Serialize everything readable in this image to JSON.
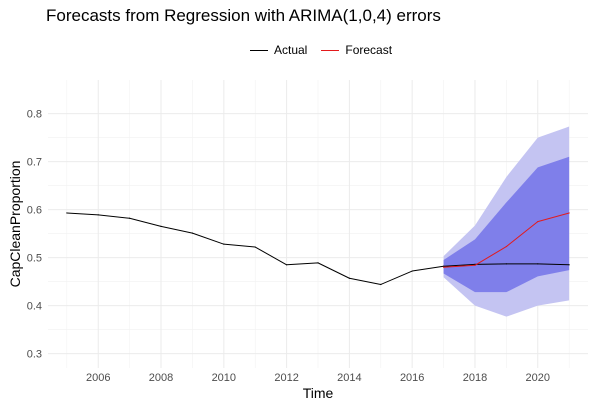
{
  "chart_data": {
    "type": "line",
    "title": "Forecasts from Regression with ARIMA(1,0,4) errors",
    "xlabel": "Time",
    "ylabel": "CapCleanProportion",
    "xlim": [
      2004.4,
      2021.6
    ],
    "ylim": [
      0.27,
      0.87
    ],
    "x_ticks": [
      2006,
      2008,
      2010,
      2012,
      2014,
      2016,
      2018,
      2020
    ],
    "y_ticks": [
      0.3,
      0.4,
      0.5,
      0.6,
      0.7,
      0.8
    ],
    "legend": {
      "position": "top",
      "items": [
        {
          "label": "Actual",
          "color": "#000000"
        },
        {
          "label": "Forecast",
          "color": "#e31a1c"
        }
      ]
    },
    "series": [
      {
        "name": "Actual",
        "color": "#000000",
        "x": [
          2005,
          2006,
          2007,
          2008,
          2009,
          2010,
          2011,
          2012,
          2013,
          2014,
          2015,
          2016,
          2017,
          2018,
          2019,
          2020,
          2021
        ],
        "y": [
          0.593,
          0.589,
          0.582,
          0.565,
          0.551,
          0.528,
          0.522,
          0.485,
          0.489,
          0.457,
          0.444,
          0.472,
          0.482,
          0.486,
          0.487,
          0.487,
          0.485
        ]
      },
      {
        "name": "Forecast",
        "color": "#e31a1c",
        "x": [
          2017,
          2018,
          2019,
          2020,
          2021
        ],
        "y": [
          0.48,
          0.484,
          0.523,
          0.575,
          0.593
        ]
      }
    ],
    "intervals": [
      {
        "level": 95,
        "color": "#c4c4f2",
        "x": [
          2017,
          2018,
          2019,
          2020,
          2021
        ],
        "lower": [
          0.459,
          0.4,
          0.377,
          0.4,
          0.411
        ],
        "upper": [
          0.503,
          0.567,
          0.668,
          0.75,
          0.773
        ]
      },
      {
        "level": 80,
        "color": "#7f7fea",
        "x": [
          2017,
          2018,
          2019,
          2020,
          2021
        ],
        "lower": [
          0.467,
          0.428,
          0.428,
          0.461,
          0.474
        ],
        "upper": [
          0.495,
          0.538,
          0.615,
          0.688,
          0.71
        ]
      }
    ],
    "grid": true
  }
}
